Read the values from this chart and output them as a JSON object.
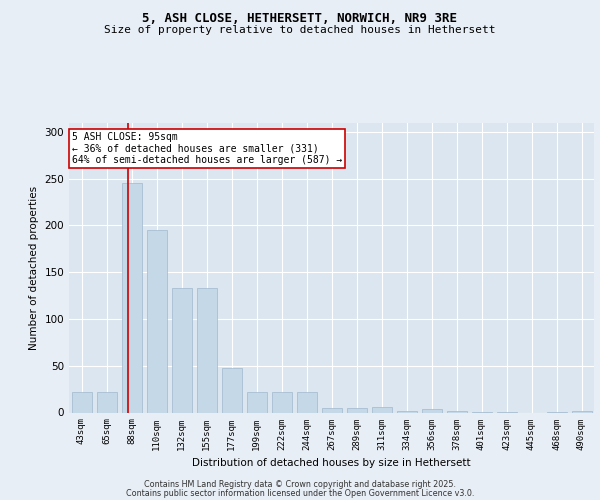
{
  "title1": "5, ASH CLOSE, HETHERSETT, NORWICH, NR9 3RE",
  "title2": "Size of property relative to detached houses in Hethersett",
  "xlabel": "Distribution of detached houses by size in Hethersett",
  "ylabel": "Number of detached properties",
  "categories": [
    "43sqm",
    "65sqm",
    "88sqm",
    "110sqm",
    "132sqm",
    "155sqm",
    "177sqm",
    "199sqm",
    "222sqm",
    "244sqm",
    "267sqm",
    "289sqm",
    "311sqm",
    "334sqm",
    "356sqm",
    "378sqm",
    "401sqm",
    "423sqm",
    "445sqm",
    "468sqm",
    "490sqm"
  ],
  "values": [
    22,
    22,
    245,
    195,
    133,
    133,
    48,
    22,
    22,
    22,
    5,
    5,
    6,
    2,
    4,
    2,
    1,
    1,
    0,
    1,
    2
  ],
  "bar_color": "#c5d8e8",
  "bar_edgecolor": "#a0b8cc",
  "bar_width": 0.8,
  "vline_x": 1.85,
  "vline_color": "#cc0000",
  "annotation_text": "5 ASH CLOSE: 95sqm\n← 36% of detached houses are smaller (331)\n64% of semi-detached houses are larger (587) →",
  "annotation_box_color": "#ffffff",
  "annotation_box_edgecolor": "#cc0000",
  "ylim": [
    0,
    310
  ],
  "yticks": [
    0,
    50,
    100,
    150,
    200,
    250,
    300
  ],
  "bg_color": "#e8eef5",
  "plot_bg_color": "#dce6f0",
  "grid_color": "#ffffff",
  "title_fontsize": 9,
  "subtitle_fontsize": 8,
  "footer1": "Contains HM Land Registry data © Crown copyright and database right 2025.",
  "footer2": "Contains public sector information licensed under the Open Government Licence v3.0."
}
